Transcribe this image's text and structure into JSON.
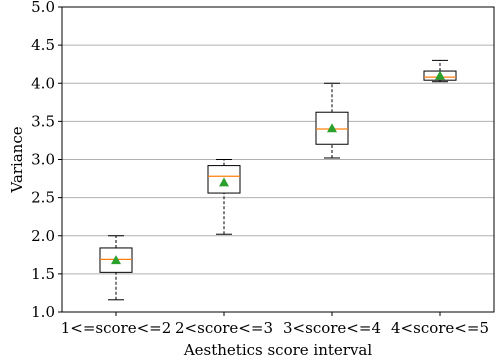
{
  "chart_data": {
    "type": "box",
    "xlabel": "Aesthetics score interval",
    "ylabel": "Variance",
    "ylim": [
      1.0,
      5.0
    ],
    "yticks": [
      "1.0",
      "1.5",
      "2.0",
      "2.5",
      "3.0",
      "3.5",
      "4.0",
      "4.5",
      "5.0"
    ],
    "grid": "horizontal",
    "categories": [
      "1<=score<=2",
      "2<score<=3",
      "3<score<=4",
      "4<score<=5"
    ],
    "boxes": [
      {
        "whisker_low": 1.16,
        "q1": 1.52,
        "median": 1.69,
        "q3": 1.84,
        "whisker_high": 2.0,
        "mean": 1.68
      },
      {
        "whisker_low": 2.02,
        "q1": 2.56,
        "median": 2.78,
        "q3": 2.92,
        "whisker_high": 3.0,
        "mean": 2.7
      },
      {
        "whisker_low": 3.02,
        "q1": 3.2,
        "median": 3.4,
        "q3": 3.62,
        "whisker_high": 4.0,
        "mean": 3.41
      },
      {
        "whisker_low": 4.02,
        "q1": 4.04,
        "median": 4.08,
        "q3": 4.16,
        "whisker_high": 4.3,
        "mean": 4.1
      }
    ],
    "colors": {
      "box": "#000000",
      "median": "#ff7f0e",
      "mean": "#2ca02c",
      "grid": "#b0b0b0"
    }
  }
}
